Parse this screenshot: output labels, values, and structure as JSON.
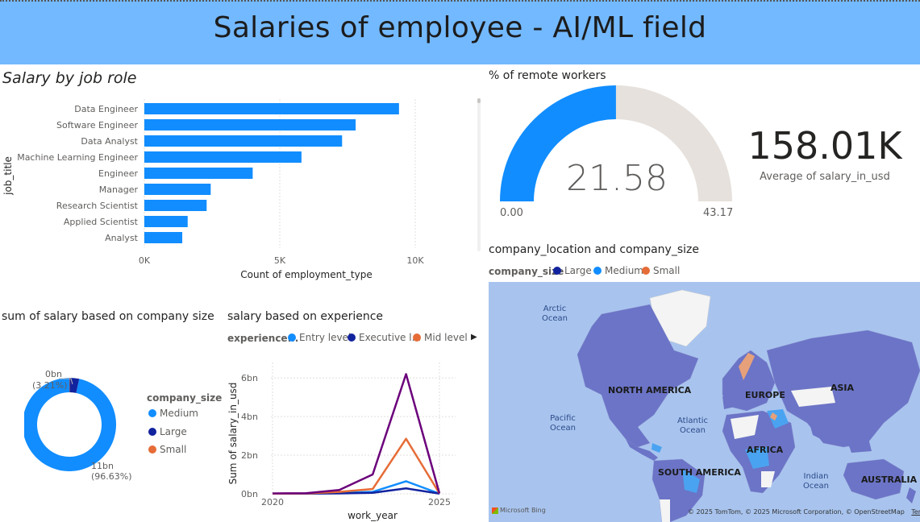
{
  "header": {
    "title": "Salaries of employee - AI/ML field"
  },
  "bar_visual": {
    "title": "Salary by job role",
    "chart_data": {
      "type": "bar",
      "orientation": "horizontal",
      "categories": [
        "Data Engineer",
        "Software Engineer",
        "Data Analyst",
        "Machine Learning Engineer",
        "Engineer",
        "Manager",
        "Research Scientist",
        "Applied Scientist",
        "Analyst"
      ],
      "values": [
        9400,
        7800,
        7300,
        5800,
        4000,
        2450,
        2300,
        1600,
        1400
      ],
      "xlabel": "Count of employment_type",
      "ylabel": "job_title",
      "xticks": [
        "0K",
        "5K",
        "10K"
      ],
      "xlim": [
        0,
        10000
      ],
      "grid": true
    }
  },
  "gauge": {
    "title": "% of remote workers",
    "value": 21.58,
    "value_label": "21.58",
    "min_label": "0.00",
    "max_label": "43.17",
    "min": 0,
    "max": 43.17,
    "fill_color": "#118dff",
    "track_color": "#e6e1dc"
  },
  "kpi": {
    "value": "158.01K",
    "label": "Average of salary_in_usd"
  },
  "donut": {
    "title": "sum of salary based on company size",
    "legend_title": "company_size",
    "chart_data": {
      "type": "pie",
      "series": [
        {
          "name": "Medium",
          "value": 96.63,
          "color": "#118dff"
        },
        {
          "name": "Large",
          "value": 3.21,
          "color": "#12239e"
        },
        {
          "name": "Small",
          "value": 0.16,
          "color": "#e66c37"
        }
      ]
    },
    "labels": {
      "large_value": "0bn",
      "large_pct": "(3.21%)",
      "medium_value": "11bn",
      "medium_pct": "(96.63%)"
    }
  },
  "line_visual": {
    "title": "salary based on experience",
    "legend_title": "experience...",
    "legend": [
      {
        "name": "Entry level",
        "color": "#118dff"
      },
      {
        "name": "Executive l...",
        "color": "#12239e"
      },
      {
        "name": "Mid level",
        "color": "#e66c37"
      }
    ],
    "chart_data": {
      "type": "line",
      "x": [
        2020,
        2021,
        2022,
        2023,
        2024,
        2025
      ],
      "series": [
        {
          "name": "Entry level",
          "color": "#118dff",
          "values": [
            0.01,
            0.01,
            0.05,
            0.1,
            0.65,
            0.01
          ]
        },
        {
          "name": "Executive l...",
          "color": "#12239e",
          "values": [
            0.01,
            0.01,
            0.02,
            0.05,
            0.28,
            0.01
          ]
        },
        {
          "name": "Mid level",
          "color": "#e66c37",
          "values": [
            0.01,
            0.02,
            0.1,
            0.25,
            2.85,
            0.02
          ]
        },
        {
          "color": "#6b007b",
          "values": [
            0.02,
            0.03,
            0.2,
            1.0,
            6.2,
            0.02
          ]
        }
      ],
      "yticks": [
        "0bn",
        "2bn",
        "4bn",
        "6bn"
      ],
      "ylim": [
        0,
        6.8
      ],
      "xticks": [
        "2020",
        "2025"
      ],
      "xlabel": "work_year",
      "ylabel": "Sum of salary_in_usd"
    }
  },
  "map_visual": {
    "title": "company_location and company_size",
    "legend_title": "company_size",
    "legend": [
      {
        "name": "Large",
        "color": "#12239e"
      },
      {
        "name": "Medium",
        "color": "#118dff"
      },
      {
        "name": "Small",
        "color": "#e66c37"
      }
    ],
    "oceans": {
      "arctic": "Arctic\nOcean",
      "pacific": "Pacific\nOcean",
      "atlantic": "Atlantic\nOcean",
      "indian": "Indian\nOcean"
    },
    "continents": {
      "na": "NORTH AMERICA",
      "sa": "SOUTH AMERICA",
      "eu": "EUROPE",
      "af": "AFRICA",
      "as": "ASIA",
      "au": "AUSTRALIA"
    },
    "attribution": "© 2025 TomTom, © 2025 Microsoft Corporation, © OpenStreetMap",
    "terms": "Terms",
    "bing": "Microsoft Bing"
  }
}
